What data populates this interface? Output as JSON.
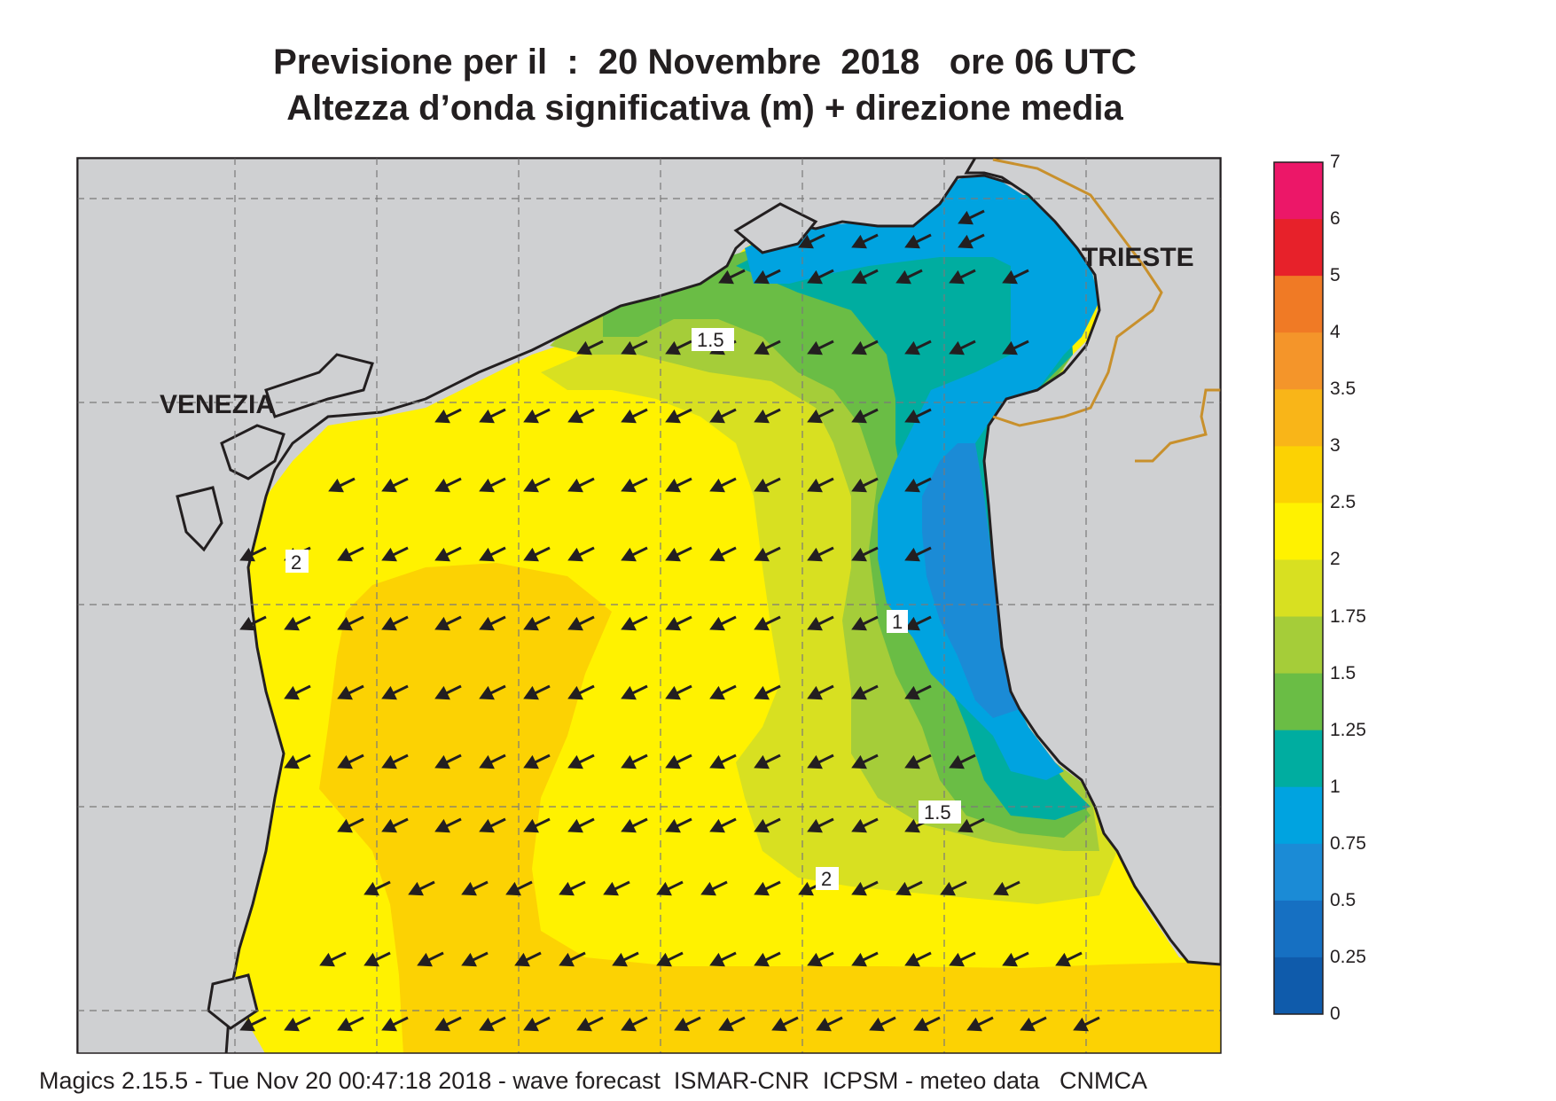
{
  "title_line1": "Previsione per il  :  20 Novembre  2018   ore 06 UTC",
  "title_line2": "Altezza d’onda significativa (m) + direzione media",
  "footer": "Magics 2.15.5 - Tue Nov 20 00:47:18 2018 - wave forecast  ISMAR-CNR  ICPSM - meteo data   CNMCA",
  "cities": {
    "venezia": "VENEZIA",
    "trieste": "TRIESTE"
  },
  "colorbar": {
    "labels": [
      "7",
      "6",
      "5",
      "4",
      "3.5",
      "3",
      "2.5",
      "2",
      "1.75",
      "1.5",
      "1.25",
      "1",
      "0.75",
      "0.5",
      "0.25",
      "0"
    ],
    "colors": [
      "#ec1768",
      "#e7212a",
      "#f07a25",
      "#f4952a",
      "#f9b518",
      "#fcd203",
      "#fff200",
      "#d8e021",
      "#a5cd39",
      "#6abd45",
      "#00ada0",
      "#00a3e0",
      "#1b8bd6",
      "#1670c2",
      "#0f5bab"
    ]
  },
  "contour_labels": [
    "1.5",
    "2",
    "1",
    "1.5",
    "2"
  ],
  "colors": {
    "land": "#cfd0d2",
    "sea_default": "#fff200",
    "band_2_5_3": "#fcd203",
    "band_1_75_2": "#d8e021",
    "band_1_5_1_75": "#a5cd39",
    "band_1_25_1_5": "#6abd45",
    "band_1_1_25": "#00ada0",
    "band_0_75_1": "#00a3e0",
    "band_0_5_0_75": "#1b8bd6",
    "border": "#c8902c"
  },
  "wave_direction": "arrows toward west-southwest"
}
